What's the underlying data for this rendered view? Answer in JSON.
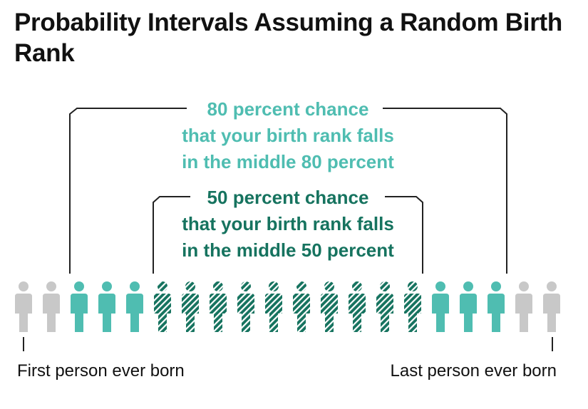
{
  "title": "Probability Intervals Assuming a Random Birth Rank",
  "intervals": [
    {
      "key": "outer",
      "lines": [
        "80 percent chance",
        "that your birth rank falls",
        "in the middle 80 percent"
      ],
      "color": "#4fbdb1"
    },
    {
      "key": "inner",
      "lines": [
        "50 percent chance",
        "that your birth rank falls",
        "in the middle 50 percent"
      ],
      "color": "#16735f"
    }
  ],
  "people": {
    "count": 20,
    "types": [
      "outside",
      "outside",
      "middle80",
      "middle80",
      "middle80",
      "middle50",
      "middle50",
      "middle50",
      "middle50",
      "middle50",
      "middle50",
      "middle50",
      "middle50",
      "middle50",
      "middle50",
      "middle80",
      "middle80",
      "middle80",
      "outside",
      "outside"
    ],
    "colors": {
      "outside": "#c8c8c8",
      "middle80": "#4fbdb1",
      "middle50": "#16735f"
    }
  },
  "endpoints": {
    "first": "First person ever born",
    "last": "Last person ever born"
  }
}
